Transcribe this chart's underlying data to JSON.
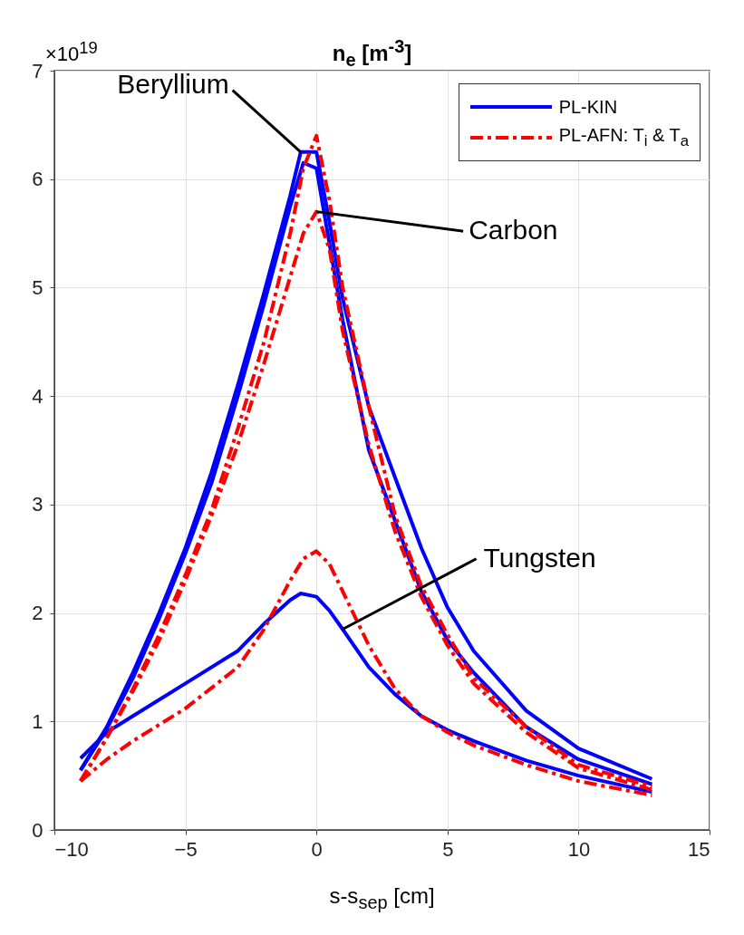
{
  "chart_data": {
    "type": "line",
    "title": "n$_{e}$ [m$^{-3}$]",
    "xlabel": "s-s$_{sep}$ [cm]",
    "xlim": [
      -10,
      15
    ],
    "xticks": [
      -10,
      -5,
      0,
      5,
      10,
      15
    ],
    "ylim": [
      0,
      7
    ],
    "yticks": [
      0,
      1,
      2,
      3,
      4,
      5,
      6,
      7
    ],
    "grid": true,
    "legend": "top right",
    "marker": "none",
    "annotations": [
      "×10$^{19}$",
      {
        "text": "Beryllium",
        "x": -0.6,
        "y": 6.25
      },
      {
        "text": "Carbon",
        "x": 0,
        "y": 5.7
      },
      {
        "text": "Tungsten",
        "x": 1,
        "y": 1.85
      }
    ],
    "series": [
      {
        "name": "PL-KIN",
        "color": "#0000ff",
        "line_style": "solid",
        "x": [
          -9,
          -8,
          -7,
          -6,
          -5,
          -4,
          -3,
          -2,
          -1,
          -0.6,
          0,
          0.5,
          1,
          2,
          3,
          4,
          5,
          6,
          8,
          10,
          12.8
        ],
        "values": [
          0.55,
          0.95,
          1.45,
          2.0,
          2.6,
          3.3,
          4.1,
          4.95,
          5.85,
          6.25,
          6.25,
          5.6,
          4.9,
          3.9,
          3.25,
          2.6,
          2.05,
          1.65,
          1.1,
          0.75,
          0.47
        ]
      },
      {
        "color": "#0000ff",
        "line_style": "solid",
        "x": [
          -9,
          -8,
          -7,
          -6,
          -5,
          -4,
          -3,
          -2,
          -1,
          -0.5,
          0,
          0.5,
          1,
          2,
          3,
          4,
          5,
          6,
          8,
          10,
          12.8
        ],
        "values": [
          0.55,
          0.93,
          1.4,
          1.95,
          2.55,
          3.2,
          4.0,
          4.85,
          5.75,
          6.15,
          6.1,
          5.4,
          4.7,
          3.5,
          2.85,
          2.2,
          1.75,
          1.45,
          0.95,
          0.65,
          0.42
        ]
      },
      {
        "color": "#0000ff",
        "line_style": "solid",
        "x": [
          -9,
          -8,
          -7,
          -5,
          -3,
          -2,
          -1,
          -0.6,
          0,
          0.5,
          1,
          2,
          3,
          4,
          5,
          6,
          8,
          10,
          12.8
        ],
        "values": [
          0.66,
          0.9,
          1.05,
          1.35,
          1.65,
          1.9,
          2.12,
          2.18,
          2.15,
          2.02,
          1.85,
          1.5,
          1.25,
          1.05,
          0.92,
          0.82,
          0.64,
          0.5,
          0.35
        ]
      },
      {
        "name": "PL-AFN: T$_{i}$ & T$_{a}$",
        "color": "#ff0000",
        "line_style": "dashed",
        "x": [
          -9,
          -8,
          -7,
          -6,
          -5,
          -4,
          -3,
          -2,
          -1,
          -0.5,
          0,
          0.5,
          1,
          2,
          3,
          4,
          5,
          6,
          8,
          10,
          12.8
        ],
        "values": [
          0.45,
          0.85,
          1.3,
          1.8,
          2.35,
          2.95,
          3.7,
          4.5,
          5.5,
          6.1,
          6.4,
          5.8,
          5.0,
          3.9,
          2.9,
          2.25,
          1.8,
          1.4,
          0.95,
          0.6,
          0.4
        ]
      },
      {
        "color": "#ff0000",
        "line_style": "dashed",
        "x": [
          -9,
          -8,
          -7,
          -6,
          -5,
          -4,
          -3,
          -2,
          -1,
          -0.5,
          0,
          0.5,
          1,
          2,
          3,
          4,
          5,
          6,
          8,
          10,
          12.8
        ],
        "values": [
          0.45,
          0.85,
          1.28,
          1.75,
          2.3,
          2.9,
          3.55,
          4.3,
          5.1,
          5.5,
          5.7,
          5.35,
          4.6,
          3.55,
          2.75,
          2.15,
          1.7,
          1.35,
          0.9,
          0.57,
          0.37
        ]
      },
      {
        "color": "#ff0000",
        "line_style": "dashed",
        "x": [
          -9,
          -8,
          -7,
          -5,
          -3,
          -2,
          -1,
          -0.5,
          0,
          0.5,
          1,
          2,
          3,
          4,
          5,
          6,
          8,
          10,
          12.8
        ],
        "values": [
          0.45,
          0.65,
          0.82,
          1.12,
          1.5,
          1.85,
          2.3,
          2.5,
          2.57,
          2.45,
          2.2,
          1.7,
          1.3,
          1.05,
          0.9,
          0.78,
          0.6,
          0.45,
          0.32
        ]
      }
    ]
  }
}
